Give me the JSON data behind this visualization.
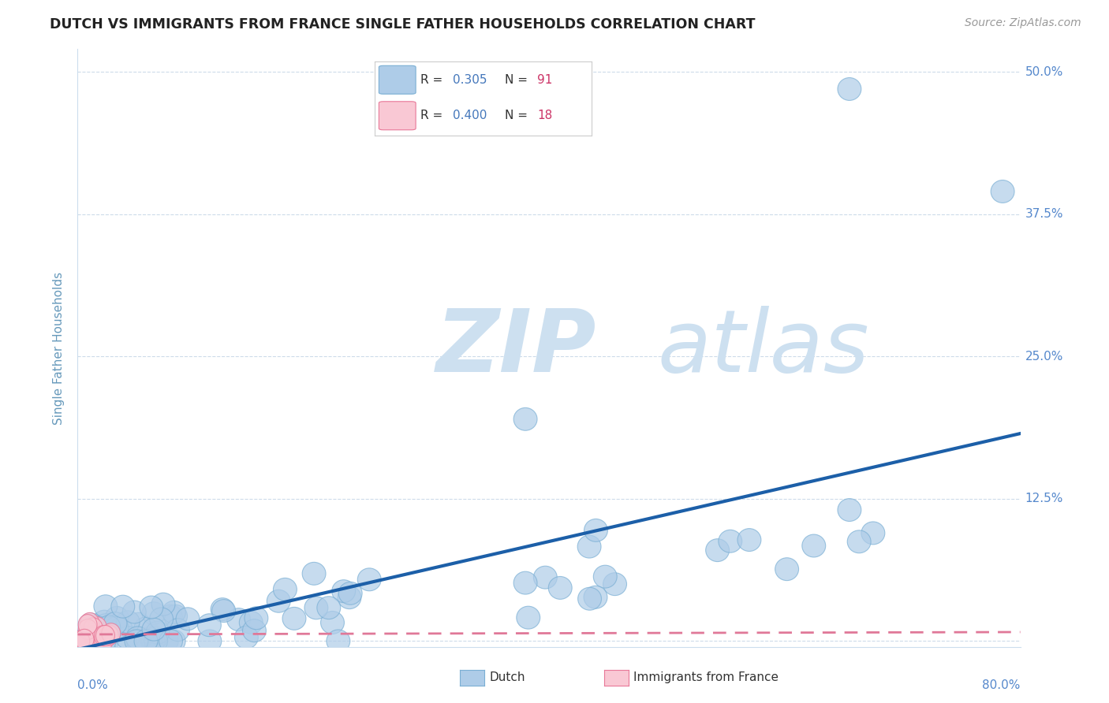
{
  "title": "DUTCH VS IMMIGRANTS FROM FRANCE SINGLE FATHER HOUSEHOLDS CORRELATION CHART",
  "source_text": "Source: ZipAtlas.com",
  "ylabel": "Single Father Households",
  "x_min": 0.0,
  "x_max": 0.8,
  "y_min": -0.005,
  "y_max": 0.52,
  "yticks": [
    0.0,
    0.125,
    0.25,
    0.375,
    0.5
  ],
  "ytick_labels": [
    "",
    "12.5%",
    "25.0%",
    "37.5%",
    "50.0%"
  ],
  "xtick_labels": [
    "0.0%",
    "80.0%"
  ],
  "dutch_R": 0.305,
  "dutch_N": 91,
  "france_R": 0.4,
  "france_N": 18,
  "dutch_color": "#aecce8",
  "dutch_edge_color": "#7aafd4",
  "dutch_line_color": "#1c5fa8",
  "france_color": "#f9c8d4",
  "france_edge_color": "#e87898",
  "france_line_color": "#e07898",
  "watermark_zip": "ZIP",
  "watermark_atlas": "atlas",
  "watermark_color": "#cde0f0",
  "background_color": "#ffffff",
  "grid_color": "#c8d8e8",
  "title_color": "#222222",
  "axis_label_color": "#6699bb",
  "tick_label_color": "#5588cc",
  "legend_R_color": "#4477bb",
  "legend_N_color": "#cc3366",
  "source_color": "#999999"
}
